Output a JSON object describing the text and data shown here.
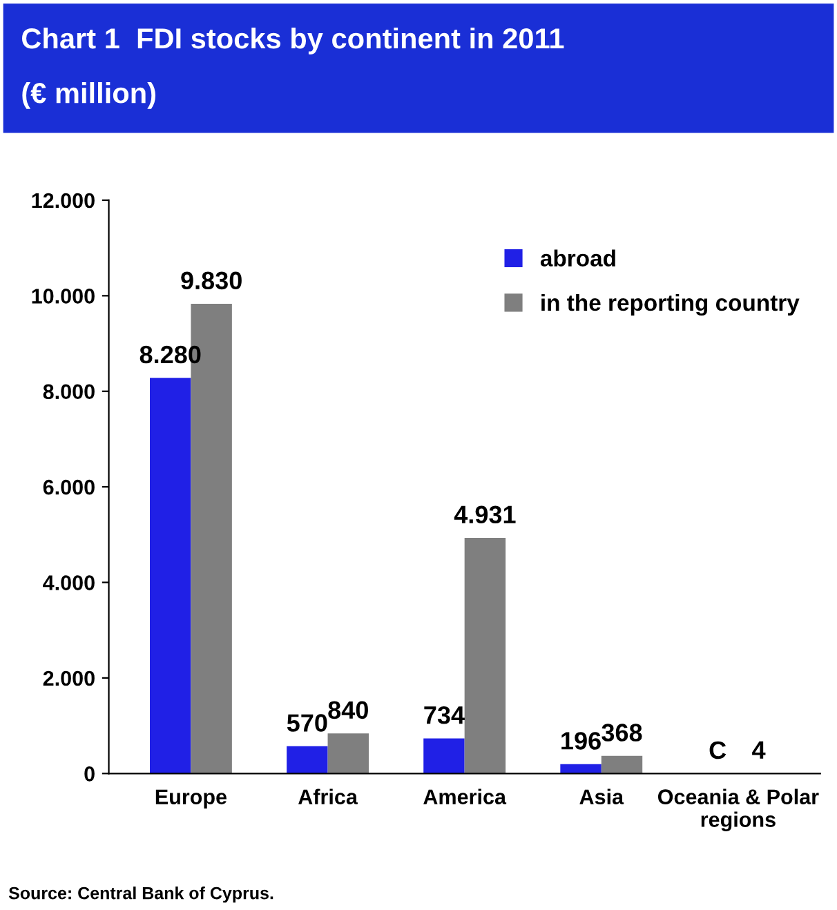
{
  "chart_data": {
    "type": "bar",
    "title": "Chart 1  FDI stocks by continent in 2011",
    "subtitle": "(€ million)",
    "categories": [
      "Europe",
      "Africa",
      "America",
      "Asia",
      "Oceania & Polar\nregions"
    ],
    "series": [
      {
        "name": "abroad",
        "color": "#2020e6",
        "values": [
          8280,
          570,
          734,
          196,
          null
        ],
        "value_labels": [
          "8.280",
          "570",
          "734",
          "196",
          "C"
        ]
      },
      {
        "name": "in the reporting country",
        "color": "#7f7f7f",
        "values": [
          9830,
          840,
          4931,
          368,
          4
        ],
        "value_labels": [
          "9.830",
          "840",
          "4.931",
          "368",
          "4"
        ]
      }
    ],
    "ylim": [
      0,
      12000
    ],
    "yticks": [
      0,
      {
        "value": 2000,
        "label": "2.000"
      },
      {
        "value": 4000,
        "label": "4.000"
      },
      {
        "value": 6000,
        "label": "6.000"
      },
      {
        "value": 8000,
        "label": "8.000"
      },
      {
        "value": 10000,
        "label": "10.000"
      },
      {
        "value": 12000,
        "label": "12.000"
      }
    ],
    "grid": false,
    "legend": "top right",
    "annotations": [
      "Source: Central Bank of Cyprus."
    ]
  }
}
